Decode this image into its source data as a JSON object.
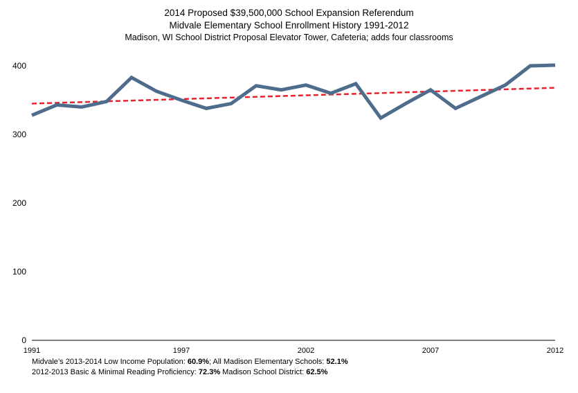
{
  "chart_data": {
    "type": "line",
    "title": "2014 Proposed $39,500,000 School Expansion Referendum",
    "subtitle": "Midvale Elementary School Enrollment History 1991-2012",
    "subtitle2": "Madison, WI School District Proposal Elevator Tower, Cafeteria; adds four classrooms",
    "x": [
      1991,
      1992,
      1993,
      1994,
      1995,
      1996,
      1997,
      1998,
      1999,
      2000,
      2001,
      2002,
      2003,
      2004,
      2005,
      2006,
      2007,
      2008,
      2009,
      2010,
      2011,
      2012
    ],
    "x_tick_labels": [
      "1991",
      "1997",
      "2002",
      "2007",
      "2012"
    ],
    "series": [
      {
        "values": [
          328,
          343,
          340,
          348,
          383,
          363,
          350,
          338,
          345,
          371,
          365,
          372,
          360,
          374,
          324,
          345,
          365,
          338,
          355,
          372,
          400,
          401
        ]
      }
    ],
    "trendline": {
      "start": 345,
      "end": 368
    },
    "ylim": [
      0,
      400
    ],
    "y_ticks": [
      0,
      100,
      200,
      300,
      400
    ],
    "grid": false,
    "colors": {
      "series": "#4e6d8c",
      "trendline": "#e8212c"
    }
  },
  "footer": {
    "line1_text": "Midvale’s 2013-2014 Low Income Population: ",
    "line1_value1": "60.9%",
    "line1_mid": "; All Madison Elementary Schools: ",
    "line1_value2": "52.1%",
    "line2_text": "2012-2013 Basic & Minimal Reading Proficiency: ",
    "line2_value1": "72.3%",
    "line2_mid": " Madison School District: ",
    "line2_value2": "62.5%"
  }
}
